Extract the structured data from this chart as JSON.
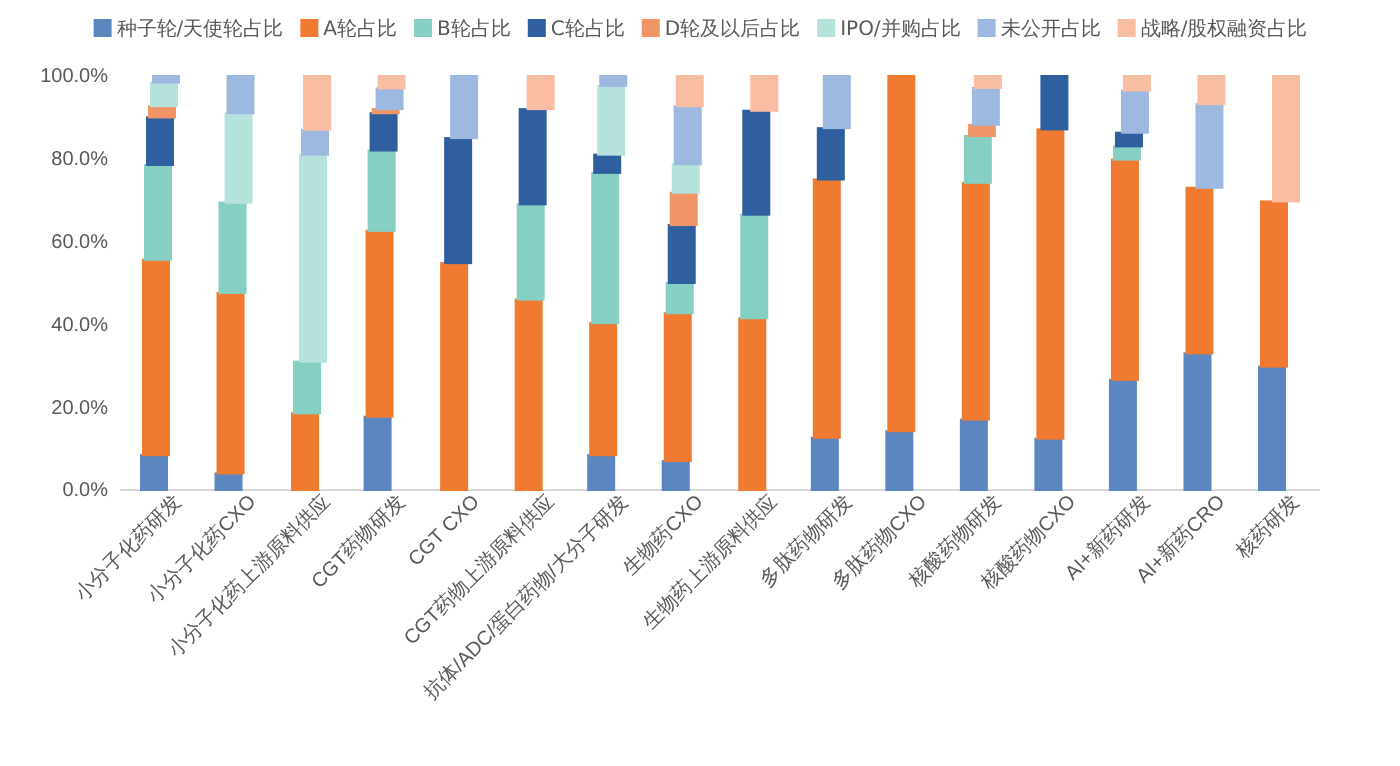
{
  "chart_data": {
    "type": "bar",
    "legend": "top",
    "grid": false,
    "stacked": true,
    "categories": [
      "小分子化药研发",
      "小分子化药CXO",
      "小分子化药上游原料供应",
      "CGT药物研发",
      "CGT CXO",
      "CGT药物上游原料供应",
      "抗体/ADC/蛋白药物/大分子研发",
      "生物药CXO",
      "生物药上游原料供应",
      "多肽药物研发",
      "多肽药物CXO",
      "核酸药物研发",
      "核酸药物CXO",
      "AI+新药研发",
      "AI+新药CRO",
      "核药研发"
    ],
    "ylim": [
      0,
      1
    ],
    "yticks": [
      {
        "value": 0,
        "label": "0.0%"
      },
      {
        "value": 0.2,
        "label": "20.0%"
      },
      {
        "value": 0.4,
        "label": "40.0%"
      },
      {
        "value": 0.6,
        "label": "60.0%"
      },
      {
        "value": 0.8,
        "label": "80.0%"
      },
      {
        "value": 1,
        "label": "100.0%"
      }
    ],
    "series": [
      {
        "name": "种子轮/天使轮占比",
        "color": "#5b86c0",
        "values": [
          0.084,
          0.04,
          null,
          0.177,
          null,
          null,
          0.084,
          0.07,
          null,
          0.126,
          0.142,
          0.17,
          0.124,
          0.266,
          0.33,
          0.298
        ]
      },
      {
        "name": "A轮占比",
        "color": "#f07a30",
        "values": [
          0.472,
          0.436,
          0.185,
          0.449,
          0.548,
          0.46,
          0.319,
          0.357,
          0.415,
          0.624,
          0.858,
          0.572,
          0.747,
          0.532,
          0.4,
          0.399
        ]
      },
      {
        "name": "B轮占比",
        "color": "#86cfc3",
        "values": [
          0.229,
          0.218,
          0.125,
          0.194,
          null,
          0.23,
          0.363,
          0.073,
          0.25,
          null,
          null,
          0.113,
          null,
          0.032,
          null,
          null
        ]
      },
      {
        "name": "C轮占比",
        "color": "#2f5f9e",
        "values": [
          0.115,
          null,
          null,
          0.09,
          0.302,
          0.23,
          0.044,
          0.14,
          0.251,
          0.124,
          null,
          null,
          0.129,
          0.033,
          null,
          null
        ]
      },
      {
        "name": "D轮及以后占比",
        "color": "#f29566",
        "values": [
          0.027,
          null,
          null,
          0.01,
          null,
          null,
          null,
          0.078,
          null,
          null,
          null,
          0.027,
          null,
          null,
          null,
          null
        ]
      },
      {
        "name": "IPO/并购占比",
        "color": "#b5e3dc",
        "values": [
          0.057,
          0.216,
          0.5,
          null,
          null,
          null,
          0.166,
          0.069,
          null,
          null,
          null,
          null,
          null,
          null,
          null,
          null
        ]
      },
      {
        "name": "未公开占比",
        "color": "#9db9e0",
        "values": [
          0.016,
          0.09,
          0.06,
          0.05,
          0.15,
          null,
          0.024,
          0.14,
          null,
          0.126,
          null,
          0.089,
          null,
          0.102,
          0.202,
          null
        ]
      },
      {
        "name": "战略/股权融资占比",
        "color": "#f8bda3",
        "values": [
          null,
          null,
          0.13,
          0.03,
          null,
          0.08,
          null,
          0.073,
          0.084,
          null,
          null,
          0.029,
          null,
          0.035,
          0.068,
          0.303
        ]
      }
    ]
  }
}
